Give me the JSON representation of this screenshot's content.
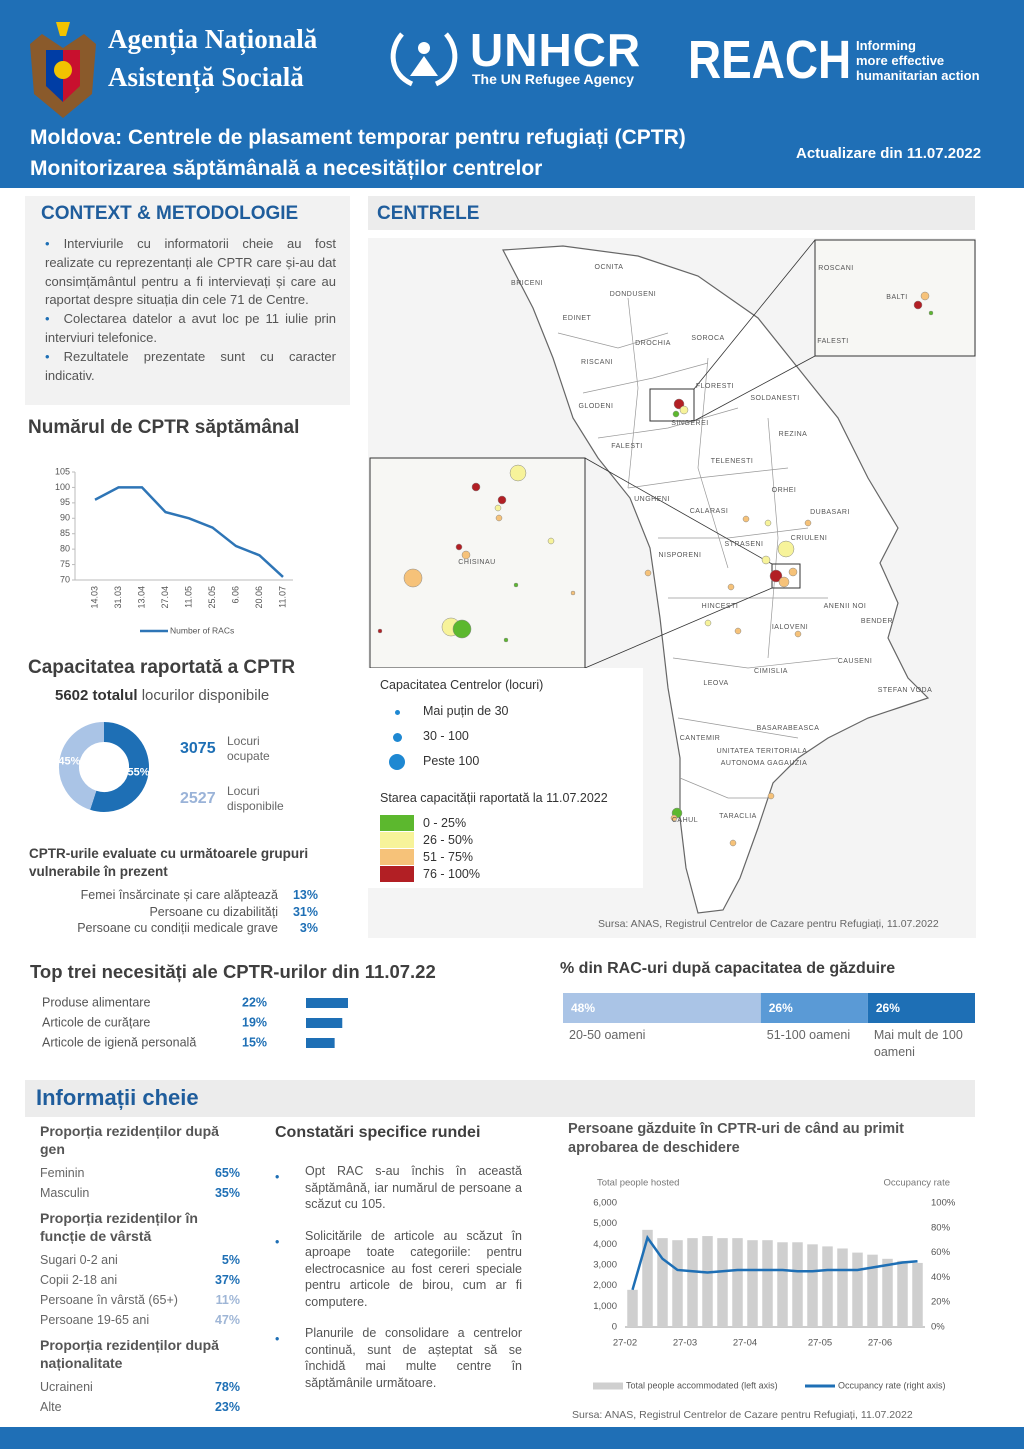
{
  "header": {
    "agency": [
      "Agenția Națională",
      "Asistență Socială"
    ],
    "unhcr": "UNHCR",
    "unhcr_sub": "The UN Refugee Agency",
    "reach": "REACH",
    "reach_tag": [
      "Informing",
      "more effective",
      "humanitarian action"
    ],
    "title": [
      "Moldova: Centrele de plasament temporar pentru refugiați (CPTR)",
      "Monitorizarea săptămânală a necesităților centrelor"
    ],
    "update": "Actualizare din 11.07.2022"
  },
  "context": {
    "heading": "CONTEXT & METODOLOGIE",
    "bullets": [
      "Interviurile cu informatorii cheie au fost realizate cu reprezentanți ale CPTR care și-au dat consimțământul pentru a fi intervievați și care au raportat despre situația din cele 71 de Centre.",
      "Colectarea datelor a avut loc pe 11 iulie prin interviuri telefonice.",
      "Rezultatele prezentate sunt cu caracter indicativ."
    ]
  },
  "weekly": {
    "type": "line",
    "title": "Numărul de CPTR săptămânal",
    "categories": [
      "14.03",
      "31.03",
      "13.04",
      "27.04",
      "11.05",
      "25.05",
      "6.06",
      "20.06",
      "11.07"
    ],
    "series": [
      {
        "name": "Number of RACs",
        "color": "#2e75b6",
        "values": [
          96,
          100,
          100,
          92,
          90,
          87,
          81,
          78,
          71
        ]
      }
    ],
    "ylim": [
      70,
      105
    ],
    "yticks": [
      70,
      75,
      80,
      85,
      90,
      95,
      100,
      105
    ]
  },
  "capacity": {
    "type": "donut",
    "title": "Capacitatea raportată a CPTR",
    "total": "5602 totalul",
    "total_rest": "locurilor disponibile",
    "categories": [
      "Locuri ocupate",
      "Locuri disponibile"
    ],
    "counts": [
      "3075",
      "2527"
    ],
    "values": [
      55,
      45
    ],
    "value_labels": [
      "55%",
      "45%"
    ],
    "colors": [
      "#1e6fb5",
      "#aac4e6"
    ]
  },
  "vulnerable": {
    "heading": "CPTR-urile evaluate cu următoarele grupuri vulnerabile în prezent",
    "rows": [
      {
        "label": "Femei însărcinate și care alăptează",
        "value": "13%"
      },
      {
        "label": "Persoane cu dizabilități",
        "value": "31%"
      },
      {
        "label": "Persoane cu condiții medicale grave",
        "value": "3%"
      }
    ]
  },
  "needs": {
    "type": "bar",
    "title": "Top trei necesități ale CPTR-urilor din 11.07.22",
    "categories": [
      "Produse alimentare",
      "Articole de curățare",
      "Articole de igienă personală"
    ],
    "values": [
      22,
      19,
      15
    ],
    "value_labels": [
      "22%",
      "19%",
      "15%"
    ],
    "color": "#1e6fb5"
  },
  "rac": {
    "type": "stacked-bar",
    "title": "% din RAC-uri după capacitatea de găzduire",
    "categories": [
      "20-50 oameni",
      "51-100 oameni",
      "Mai mult de 100 oameni"
    ],
    "values": [
      48,
      26,
      26
    ],
    "value_labels": [
      "48%",
      "26%",
      "26%"
    ],
    "colors": [
      "#aac4e6",
      "#5a9ad6",
      "#1e6fb5"
    ]
  },
  "map": {
    "heading": "CENTRELE",
    "places": [
      "OCNITA",
      "BRICENI",
      "DONDUSENI",
      "EDINET",
      "DROCHIA",
      "SOROCA",
      "RISCANI",
      "FLORESTI",
      "GLODENI",
      "SOLDANESTI",
      "SINGEREI",
      "REZINA",
      "FALESTI",
      "TELENESTI",
      "ORHEI",
      "UNGHENI",
      "CALARASI",
      "DUBASARI",
      "CRIULENI",
      "STRASENI",
      "NISPORENI",
      "HINCESTI",
      "ANENII NOI",
      "BENDER",
      "IALOVENI",
      "CAUSENI",
      "CIMISLIA",
      "LEOVA",
      "STEFAN VODA",
      "BASARABEASCA",
      "CANTEMIR",
      "UNITATEA TERITORIALA",
      "AUTONOMA GAGAUZIA",
      "TARACLIA",
      "CAHUL",
      "ROSCANI",
      "BALTI",
      "FALESTI",
      "CHISINAU"
    ],
    "size_title": "Capacitatea Centrelor (locuri)",
    "sizes": [
      "Mai puțin de 30",
      "30 - 100",
      "Peste 100"
    ],
    "status_title": "Starea capacității raportată la 11.07.2022",
    "statuses": [
      {
        "label": "0 - 25%",
        "color": "#5cb82e"
      },
      {
        "label": "26 - 50%",
        "color": "#f7f39a"
      },
      {
        "label": "51 - 75%",
        "color": "#f6c279"
      },
      {
        "label": "76 - 100%",
        "color": "#b21f24"
      }
    ],
    "source": "Sursa: ANAS, Registrul Centrelor de Cazare pentru Refugiați, 11.07.2022"
  },
  "key": {
    "heading": "Informații cheie",
    "groups": [
      {
        "title": "Proporția rezidenților după gen",
        "rows": [
          {
            "label": "Feminin",
            "value": "65%"
          },
          {
            "label": "Masculin",
            "value": "35%"
          }
        ]
      },
      {
        "title": "Proporția rezidenților în funcție de vârstă",
        "rows": [
          {
            "label": "Sugari 0-2 ani",
            "value": "5%"
          },
          {
            "label": "Copii 2-18 ani",
            "value": "37%"
          },
          {
            "label": "Persoane în vârstă (65+)",
            "value": "11%"
          },
          {
            "label": "Persoane 19-65 ani",
            "value": "47%"
          }
        ]
      },
      {
        "title": "Proporția rezidenților după naționalitate",
        "rows": [
          {
            "label": "Ucraineni",
            "value": "78%"
          },
          {
            "label": "Alte",
            "value": "23%"
          }
        ]
      }
    ]
  },
  "findings": {
    "heading": "Constatări specifice rundei",
    "bullets": [
      "Opt RAC s-au închis în această săptămână, iar numărul de persoane a scăzut cu 105.",
      "Solicitările de articole au scăzut în aproape toate categoriile: pentru electrocasnice au fost cereri speciale pentru articole de birou, cum ar fi computere.",
      "Planurile de consolidare a centrelor continuă, sunt de așteptat să se închidă mai multe centre în săptămânile următoare."
    ]
  },
  "hosted": {
    "type": "bar-line",
    "title": "Persoane găzduite în CPTR-uri de când au primit aprobarea de deschidere",
    "y_label": "Total people hosted",
    "y2_label": "Occupancy rate",
    "categories": [
      "27-02",
      null,
      null,
      null,
      "27-03",
      null,
      null,
      null,
      "27-04",
      null,
      null,
      null,
      null,
      "27-05",
      null,
      null,
      null,
      "27-06",
      null,
      null
    ],
    "series": [
      {
        "name": "Total people accommodated (left axis)",
        "color": "#cfcfcf",
        "values": [
          1800,
          4700,
          4300,
          4200,
          4300,
          4400,
          4300,
          4300,
          4200,
          4200,
          4100,
          4100,
          4000,
          3900,
          3800,
          3600,
          3500,
          3300,
          3200,
          3100
        ]
      },
      {
        "name": "Occupancy rate (right axis)",
        "color": "#1e6fb5",
        "axis": "y2",
        "values": [
          30,
          72,
          55,
          46,
          45,
          44,
          45,
          46,
          46,
          46,
          46,
          45,
          45,
          46,
          46,
          46,
          48,
          50,
          52,
          53
        ]
      }
    ],
    "ylim": [
      0,
      6000
    ],
    "yticks": [
      0,
      {
        "value": 1000,
        "label": "1,000"
      },
      {
        "value": 2000,
        "label": "2,000"
      },
      {
        "value": 3000,
        "label": "3,000"
      },
      {
        "value": 4000,
        "label": "4,000"
      },
      {
        "value": 5000,
        "label": "5,000"
      },
      {
        "value": 6000,
        "label": "6,000"
      }
    ],
    "y2lim": [
      0,
      100
    ],
    "y2ticks": [
      {
        "value": 0,
        "label": "0%"
      },
      {
        "value": 20,
        "label": "20%"
      },
      {
        "value": 40,
        "label": "40%"
      },
      {
        "value": 60,
        "label": "60%"
      },
      {
        "value": 80,
        "label": "80%"
      },
      {
        "value": 100,
        "label": "100%"
      }
    ],
    "source": "Sursa: ANAS, Registrul Centrelor de Cazare pentru Refugiați, 11.07.2022"
  }
}
